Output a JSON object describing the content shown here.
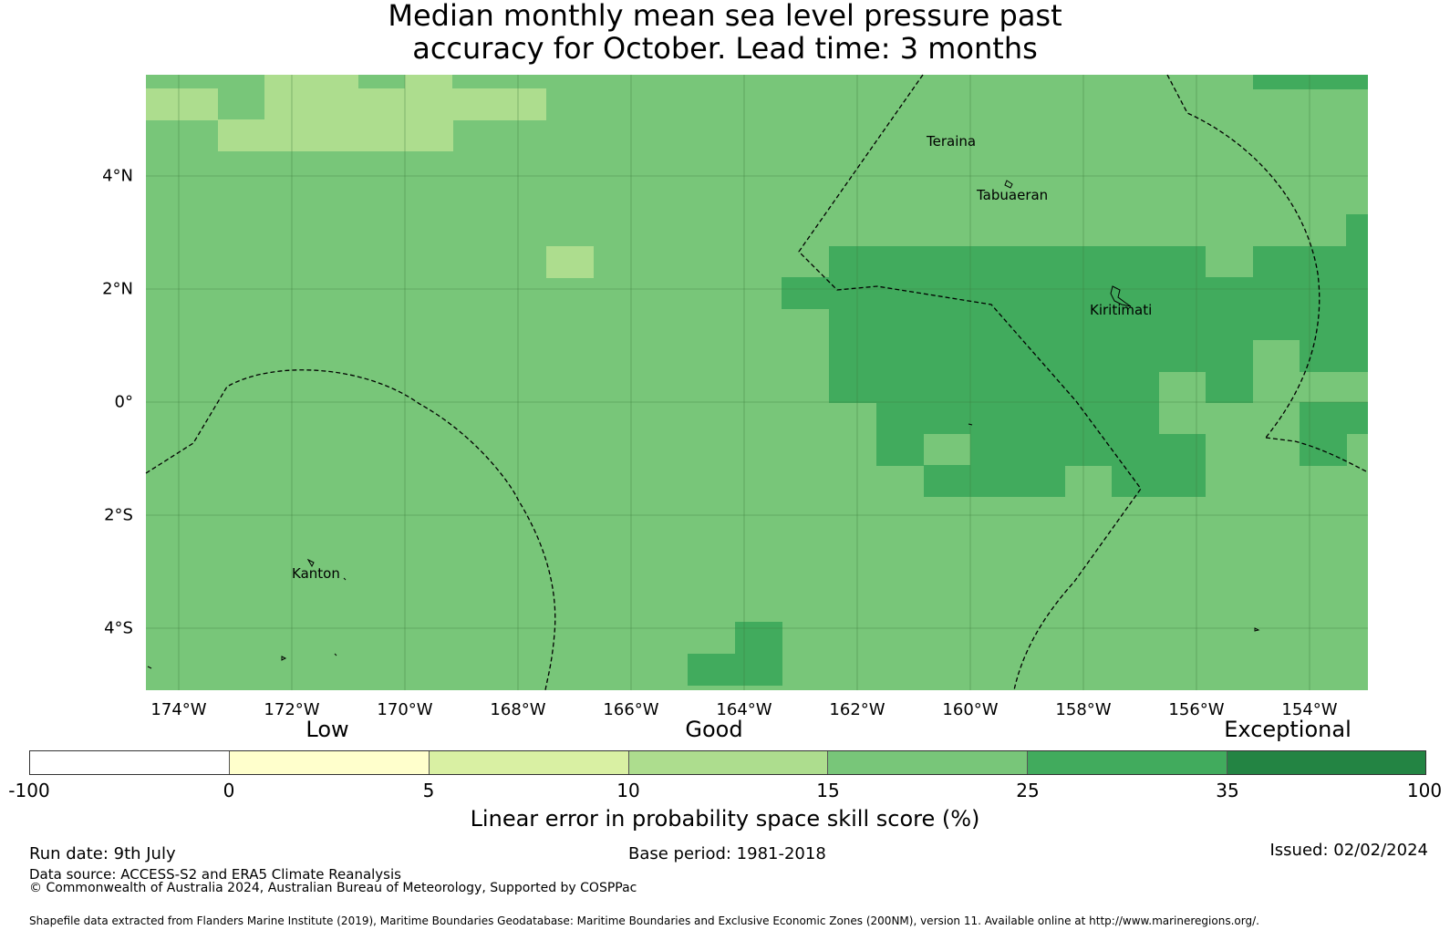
{
  "title": {
    "line1": "Median monthly mean sea level pressure past",
    "line2": "accuracy for October. Lead time: 3 months"
  },
  "map": {
    "x_ticks": [
      "174°W",
      "172°W",
      "170°W",
      "168°W",
      "166°W",
      "164°W",
      "162°W",
      "160°W",
      "158°W",
      "156°W",
      "154°W"
    ],
    "y_ticks": [
      "4°N",
      "2°N",
      "0°",
      "2°S",
      "4°S"
    ],
    "places": [
      "Teraina",
      "Tabuaeran",
      "Kiritimati",
      "Kanton"
    ],
    "colors": {
      "base": "#78c679",
      "light": "#addd8e",
      "dark": "#41ab5d"
    }
  },
  "legend": {
    "categories": [
      "Low",
      "Good",
      "Exceptional"
    ],
    "ticks": [
      "-100",
      "0",
      "5",
      "10",
      "15",
      "25",
      "35",
      "100"
    ],
    "colors": [
      "#ffffff",
      "#ffffcc",
      "#d9f0a3",
      "#addd8e",
      "#78c679",
      "#41ab5d",
      "#238443"
    ],
    "label": "Linear error in probability space skill score (%)"
  },
  "footer": {
    "run_date": "Run date: 9th July",
    "base_period": "Base period: 1981-2018",
    "issued": "Issued: 02/02/2024",
    "data_source": "Data source: ACCESS-S2 and ERA5 Climate Reanalysis",
    "copyright": "© Commonwealth of Australia 2024, Australian Bureau of Meteorology, Supported by COSPPac",
    "shapefile": "Shapefile data extracted from Flanders Marine Institute (2019), Maritime Boundaries Geodatabase: Maritime Boundaries and Exclusive Economic Zones (200NM), version 11. Available online at http://www.marineregions.org/."
  }
}
